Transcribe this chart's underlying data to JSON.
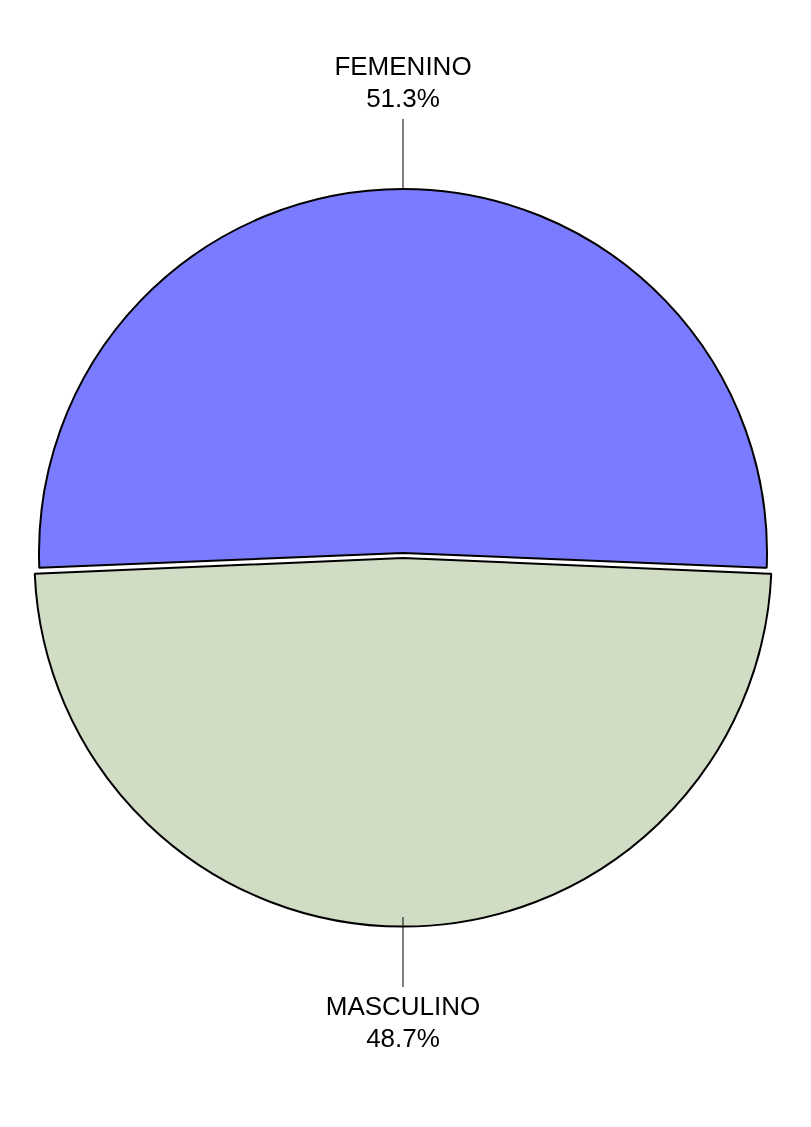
{
  "chart_data": {
    "type": "pie",
    "categories": [
      "FEMENINO",
      "MASCULINO"
    ],
    "values": [
      51.3,
      48.7
    ],
    "colors": [
      "#7b7bff",
      "#d0dcc4"
    ],
    "value_labels": [
      "51.3%",
      "48.7%"
    ],
    "legend": false
  }
}
